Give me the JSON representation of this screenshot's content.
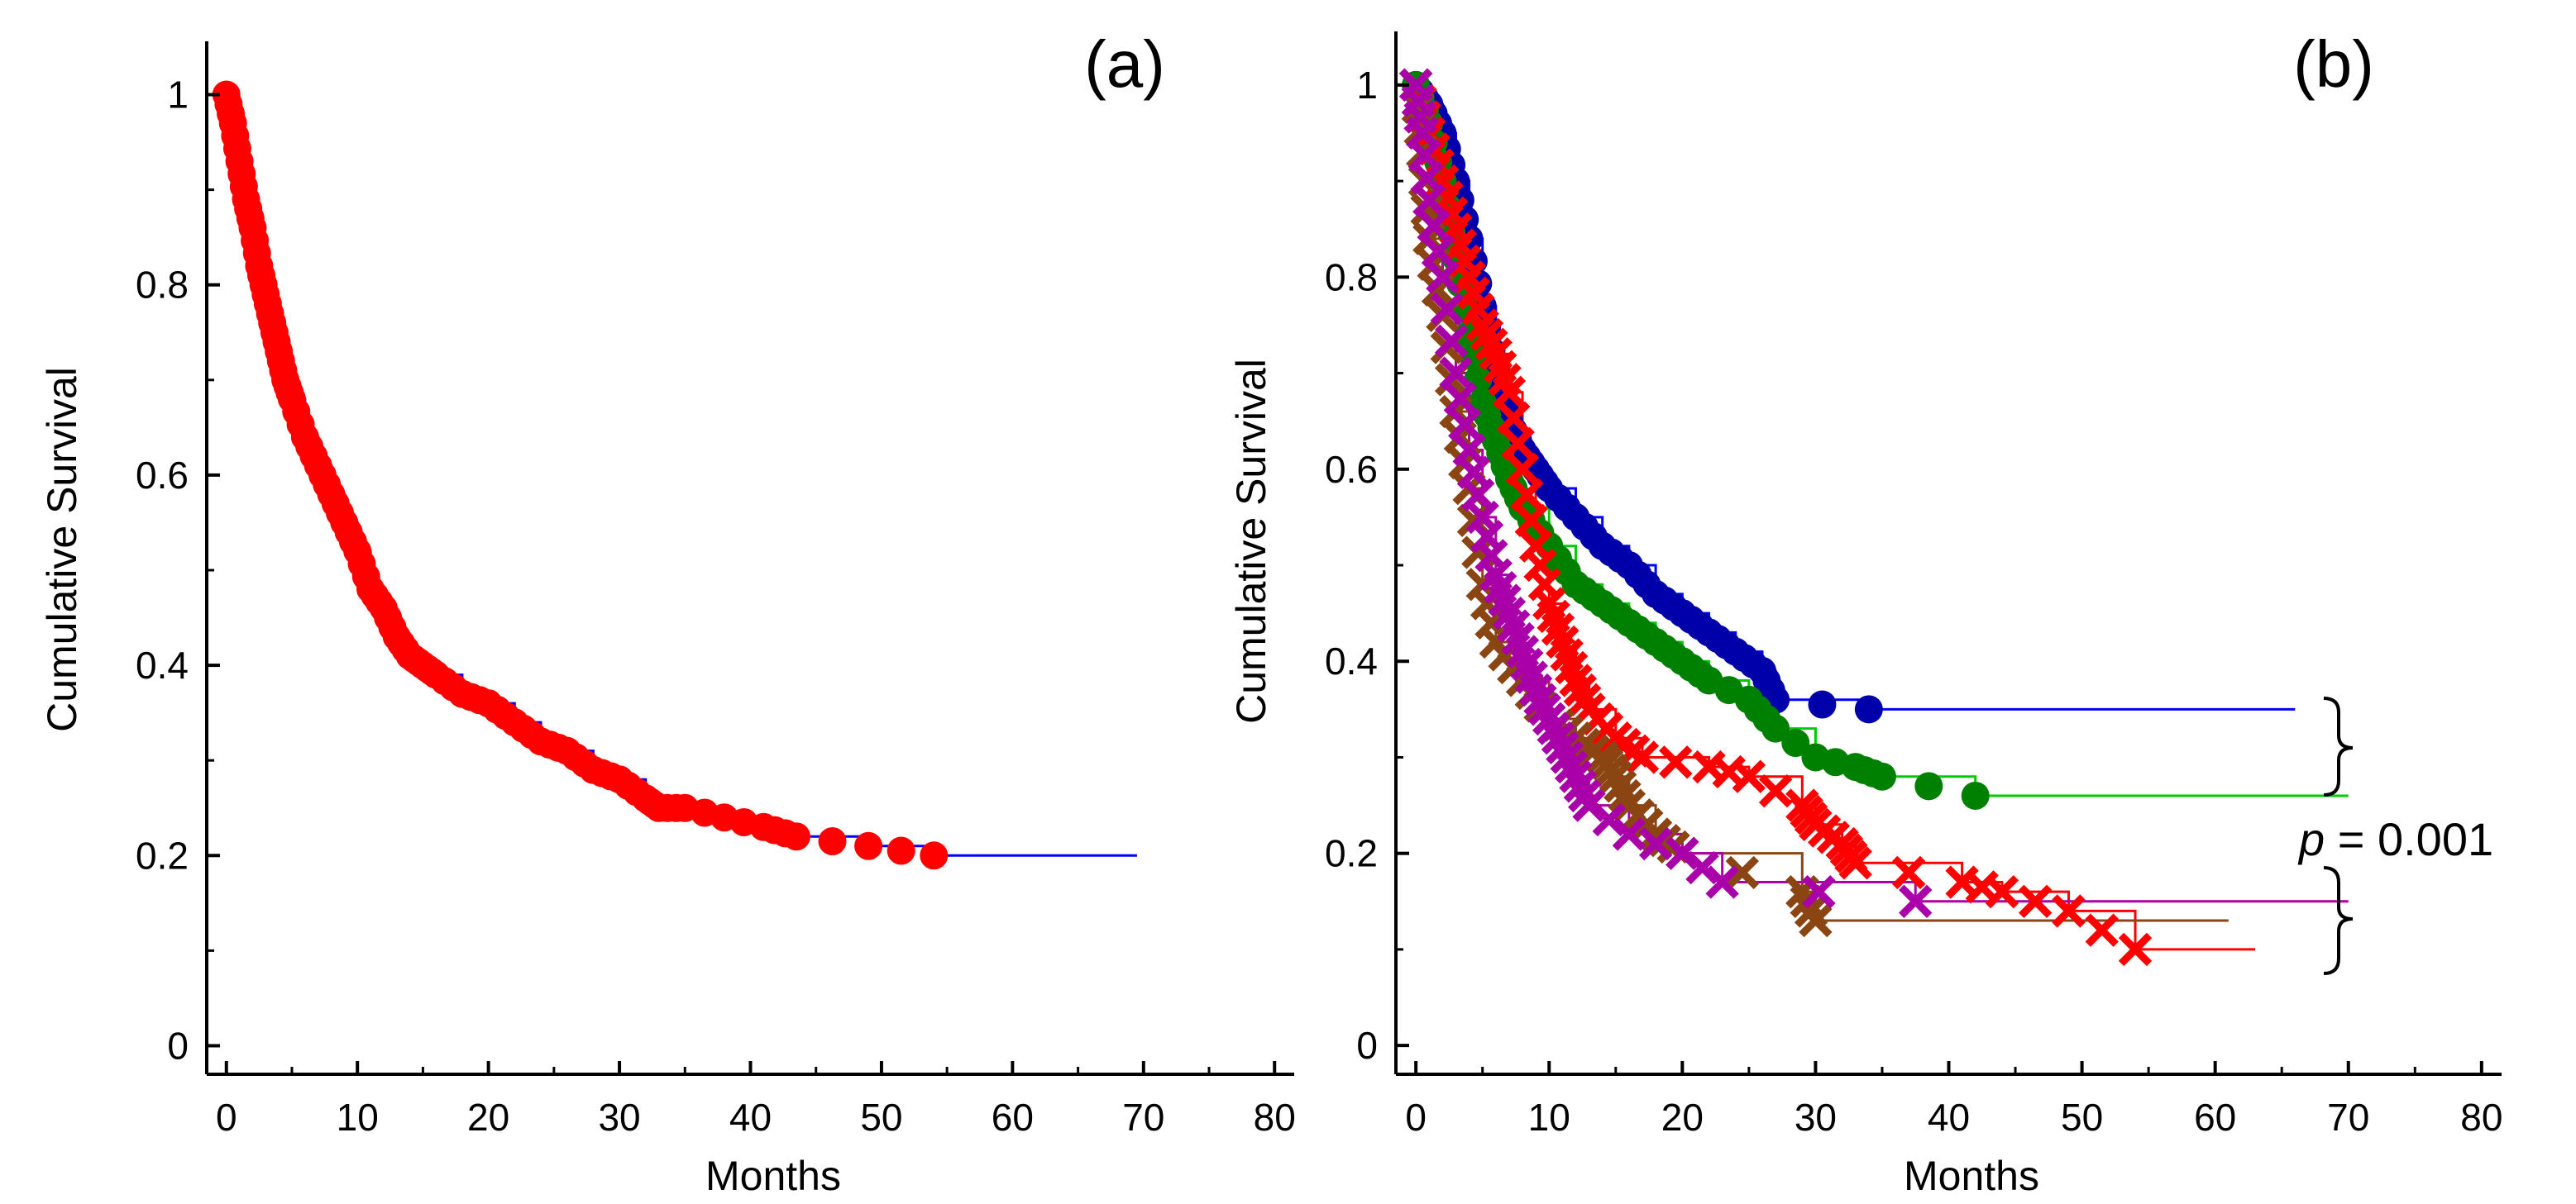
{
  "chart_data": [
    {
      "panel_label": "(a)",
      "type": "line",
      "xlabel": "Months",
      "ylabel": "Cumulative Survival",
      "xlim": [
        0,
        80
      ],
      "ylim": [
        0,
        1
      ],
      "xticks": [
        0,
        10,
        20,
        30,
        40,
        50,
        60,
        70,
        80
      ],
      "yticks": [
        0,
        0.2,
        0.4,
        0.6,
        0.8,
        1
      ],
      "ytick_labels": [
        "0",
        "0.2",
        "0.4",
        "0.6",
        "0.8",
        "1"
      ],
      "grid": false,
      "series": [
        {
          "line_color": "#0000ff",
          "marker_color": "#ff0000",
          "marker": "circle",
          "points": [
            [
              0,
              1.0
            ],
            [
              0.5,
              0.97
            ],
            [
              1,
              0.93
            ],
            [
              1.5,
              0.89
            ],
            [
              2,
              0.86
            ],
            [
              2.5,
              0.82
            ],
            [
              3,
              0.79
            ],
            [
              3.5,
              0.76
            ],
            [
              4,
              0.73
            ],
            [
              4.5,
              0.7
            ],
            [
              5,
              0.68
            ],
            [
              6,
              0.64
            ],
            [
              7,
              0.61
            ],
            [
              8,
              0.58
            ],
            [
              9,
              0.55
            ],
            [
              10,
              0.52
            ],
            [
              11,
              0.48
            ],
            [
              12,
              0.46
            ],
            [
              13,
              0.43
            ],
            [
              14,
              0.41
            ],
            [
              15,
              0.4
            ],
            [
              16,
              0.39
            ],
            [
              18,
              0.37
            ],
            [
              20,
              0.36
            ],
            [
              22,
              0.34
            ],
            [
              24,
              0.32
            ],
            [
              26,
              0.31
            ],
            [
              28,
              0.29
            ],
            [
              30,
              0.28
            ],
            [
              32,
              0.26
            ],
            [
              33,
              0.25
            ],
            [
              35,
              0.25
            ],
            [
              38,
              0.24
            ],
            [
              41,
              0.23
            ],
            [
              43.5,
              0.22
            ],
            [
              49,
              0.21
            ],
            [
              54,
              0.2
            ],
            [
              69.5,
              0.2
            ]
          ]
        }
      ]
    },
    {
      "panel_label": "(b)",
      "type": "line",
      "xlabel": "Months",
      "ylabel": "Cumulative  Survival",
      "xlim": [
        0,
        80
      ],
      "ylim": [
        0,
        1
      ],
      "xticks": [
        0,
        10,
        20,
        30,
        40,
        50,
        60,
        70,
        80
      ],
      "yticks": [
        0,
        0.2,
        0.4,
        0.6,
        0.8,
        1
      ],
      "ytick_labels": [
        "0",
        "0.2",
        "0.4",
        "0.6",
        "0.8",
        "1"
      ],
      "grid": false,
      "annotation": "p = 0.001",
      "annotation_italic_part": "p",
      "annotation_rest": " = 0.001",
      "series": [
        {
          "line_color": "#0000ff",
          "marker_color": "#0000aa",
          "marker": "circle",
          "points": [
            [
              0,
              1.0
            ],
            [
              1,
              0.98
            ],
            [
              2,
              0.95
            ],
            [
              3,
              0.9
            ],
            [
              4,
              0.84
            ],
            [
              5,
              0.77
            ],
            [
              6,
              0.7
            ],
            [
              7,
              0.65
            ],
            [
              8,
              0.62
            ],
            [
              9,
              0.6
            ],
            [
              10,
              0.58
            ],
            [
              12,
              0.55
            ],
            [
              14,
              0.52
            ],
            [
              16,
              0.5
            ],
            [
              18,
              0.47
            ],
            [
              20,
              0.45
            ],
            [
              22,
              0.43
            ],
            [
              24,
              0.41
            ],
            [
              26,
              0.39
            ],
            [
              27,
              0.36
            ],
            [
              34,
              0.35
            ],
            [
              66,
              0.35
            ]
          ]
        },
        {
          "line_color": "#00cc00",
          "marker_color": "#008000",
          "marker": "circle",
          "points": [
            [
              0,
              1.0
            ],
            [
              1,
              0.96
            ],
            [
              2,
              0.9
            ],
            [
              3,
              0.82
            ],
            [
              4,
              0.74
            ],
            [
              5,
              0.67
            ],
            [
              6,
              0.63
            ],
            [
              7,
              0.59
            ],
            [
              8,
              0.56
            ],
            [
              10,
              0.52
            ],
            [
              12,
              0.48
            ],
            [
              14,
              0.46
            ],
            [
              16,
              0.44
            ],
            [
              18,
              0.42
            ],
            [
              20,
              0.4
            ],
            [
              22,
              0.38
            ],
            [
              25,
              0.36
            ],
            [
              27,
              0.33
            ],
            [
              30,
              0.3
            ],
            [
              33,
              0.29
            ],
            [
              35,
              0.28
            ],
            [
              42,
              0.26
            ],
            [
              70,
              0.26
            ]
          ]
        },
        {
          "line_color": "#ff0000",
          "marker_color": "#ff0000",
          "marker": "cross",
          "points": [
            [
              0,
              1.0
            ],
            [
              1,
              0.95
            ],
            [
              2,
              0.9
            ],
            [
              3,
              0.85
            ],
            [
              4,
              0.8
            ],
            [
              5,
              0.75
            ],
            [
              6,
              0.72
            ],
            [
              7,
              0.68
            ],
            [
              8,
              0.6
            ],
            [
              9,
              0.52
            ],
            [
              10,
              0.46
            ],
            [
              11,
              0.42
            ],
            [
              12,
              0.38
            ],
            [
              13,
              0.35
            ],
            [
              15,
              0.32
            ],
            [
              17,
              0.3
            ],
            [
              22,
              0.29
            ],
            [
              25,
              0.28
            ],
            [
              29,
              0.25
            ],
            [
              30,
              0.23
            ],
            [
              32,
              0.21
            ],
            [
              33,
              0.19
            ],
            [
              41,
              0.17
            ],
            [
              44,
              0.16
            ],
            [
              49,
              0.14
            ],
            [
              54,
              0.1
            ],
            [
              63,
              0.1
            ]
          ]
        },
        {
          "line_color": "#8b4513",
          "marker_color": "#8b4513",
          "marker": "cross",
          "points": [
            [
              0,
              1.0
            ],
            [
              0.5,
              0.93
            ],
            [
              1,
              0.84
            ],
            [
              2,
              0.76
            ],
            [
              3,
              0.66
            ],
            [
              4,
              0.58
            ],
            [
              5,
              0.48
            ],
            [
              6,
              0.42
            ],
            [
              8,
              0.38
            ],
            [
              10,
              0.34
            ],
            [
              12,
              0.32
            ],
            [
              14,
              0.3
            ],
            [
              15,
              0.28
            ],
            [
              16,
              0.25
            ],
            [
              18,
              0.22
            ],
            [
              20,
              0.2
            ],
            [
              29,
              0.16
            ],
            [
              30,
              0.13
            ],
            [
              61,
              0.13
            ]
          ]
        },
        {
          "line_color": "#aa00aa",
          "marker_color": "#aa00aa",
          "marker": "cross",
          "points": [
            [
              0,
              1.0
            ],
            [
              0.5,
              0.95
            ],
            [
              1,
              0.88
            ],
            [
              2,
              0.8
            ],
            [
              3,
              0.7
            ],
            [
              4,
              0.62
            ],
            [
              5,
              0.55
            ],
            [
              6,
              0.49
            ],
            [
              7,
              0.45
            ],
            [
              8,
              0.41
            ],
            [
              9,
              0.37
            ],
            [
              10,
              0.34
            ],
            [
              11,
              0.31
            ],
            [
              12,
              0.28
            ],
            [
              13,
              0.25
            ],
            [
              16,
              0.22
            ],
            [
              20,
              0.2
            ],
            [
              23,
              0.17
            ],
            [
              37.5,
              0.15
            ],
            [
              70,
              0.15
            ]
          ]
        }
      ]
    }
  ]
}
